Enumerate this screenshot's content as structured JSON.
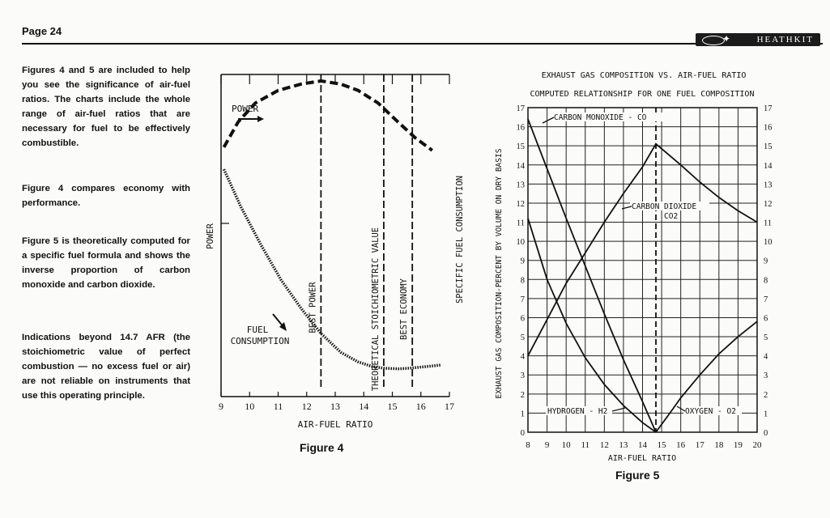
{
  "page": {
    "number": "Page 24",
    "brand": "HEATHKIT"
  },
  "text": {
    "p1": "Figures 4 and 5 are included to help you see the significance of air-fuel ratios. The charts include the whole range of air-fuel ratios that are necessary for fuel to be effectively combustible.",
    "p2": "Figure 4 compares economy with performance.",
    "p3": "Figure 5 is theoretically computed for a specific fuel formula and shows the inverse proportion of carbon monoxide and carbon dioxide.",
    "p4": "Indications beyond 14.7 AFR (the stoichiometric value of perfect combustion — no excess fuel or air) are not reliable on instruments that use this operating principle."
  },
  "chart_data": [
    {
      "type": "line",
      "figure_label": "Figure 4",
      "xlabel": "AIR-FUEL RATIO",
      "ylabel_left": "POWER",
      "ylabel_right": "SPECIFIC FUEL CONSUMPTION",
      "xlim": [
        9,
        17
      ],
      "x_ticks": [
        9,
        10,
        11,
        12,
        13,
        14,
        15,
        16,
        17
      ],
      "y_axis_values_printed": false,
      "series": [
        {
          "name": "POWER",
          "style": "dashed",
          "points": [
            [
              9.1,
              0.79
            ],
            [
              9.6,
              0.87
            ],
            [
              10.2,
              0.93
            ],
            [
              11.0,
              0.97
            ],
            [
              11.8,
              0.99
            ],
            [
              12.5,
              1.0
            ],
            [
              13.2,
              0.99
            ],
            [
              13.8,
              0.97
            ],
            [
              14.5,
              0.93
            ],
            [
              15.2,
              0.87
            ],
            [
              15.8,
              0.82
            ],
            [
              16.4,
              0.78
            ]
          ]
        },
        {
          "name": "FUEL CONSUMPTION",
          "style": "dotted",
          "points": [
            [
              9.1,
              0.72
            ],
            [
              9.7,
              0.6
            ],
            [
              10.4,
              0.48
            ],
            [
              11.1,
              0.37
            ],
            [
              11.8,
              0.28
            ],
            [
              12.5,
              0.2
            ],
            [
              13.2,
              0.14
            ],
            [
              13.8,
              0.11
            ],
            [
              14.3,
              0.095
            ],
            [
              14.7,
              0.09
            ],
            [
              15.2,
              0.088
            ],
            [
              15.6,
              0.09
            ],
            [
              16.2,
              0.095
            ],
            [
              16.7,
              0.1
            ]
          ]
        }
      ],
      "reference_lines": [
        {
          "x": 12.5,
          "label": "BEST POWER"
        },
        {
          "x": 14.7,
          "label": "THEORETICAL STOICHIOMETRIC VALUE"
        },
        {
          "x": 15.7,
          "label": "BEST ECONOMY"
        }
      ],
      "annotations": {
        "power": "POWER",
        "fuel_line1": "FUEL",
        "fuel_line2": "CONSUMPTION"
      }
    },
    {
      "type": "line",
      "figure_label": "Figure 5",
      "title": "EXHAUST GAS COMPOSITION VS. AIR-FUEL RATIO",
      "subtitle": "COMPUTED RELATIONSHIP FOR ONE FUEL COMPOSITION",
      "xlabel": "AIR-FUEL RATIO",
      "ylabel": "EXHAUST GAS COMPOSITION-PERCENT BY VOLUME ON DRY BASIS",
      "xlim": [
        8,
        20
      ],
      "ylim": [
        0,
        17
      ],
      "x_ticks": [
        8,
        9,
        10,
        11,
        12,
        13,
        14,
        15,
        16,
        17,
        18,
        19,
        20
      ],
      "y_ticks": [
        0,
        1,
        2,
        3,
        4,
        5,
        6,
        7,
        8,
        9,
        10,
        11,
        12,
        13,
        14,
        15,
        16,
        17
      ],
      "grid": true,
      "reference_line_x": 14.7,
      "series": [
        {
          "name": "CARBON MONOXIDE - CO",
          "points": [
            [
              8,
              16.4
            ],
            [
              9,
              13.8
            ],
            [
              10,
              11.2
            ],
            [
              11,
              8.7
            ],
            [
              12,
              6.2
            ],
            [
              13,
              3.8
            ],
            [
              14,
              1.6
            ],
            [
              14.7,
              0
            ]
          ]
        },
        {
          "name": "CARBON DIOXIDE - CO2",
          "points": [
            [
              8,
              4.0
            ],
            [
              9,
              5.9
            ],
            [
              10,
              7.8
            ],
            [
              11,
              9.4
            ],
            [
              12,
              11.0
            ],
            [
              13,
              12.5
            ],
            [
              14,
              13.9
            ],
            [
              14.7,
              15.1
            ],
            [
              16,
              14.0
            ],
            [
              17,
              13.1
            ],
            [
              18,
              12.3
            ],
            [
              19,
              11.6
            ],
            [
              20,
              11.0
            ]
          ]
        },
        {
          "name": "HYDROGEN - H2",
          "points": [
            [
              8,
              11.2
            ],
            [
              9,
              8.0
            ],
            [
              10,
              5.7
            ],
            [
              11,
              3.9
            ],
            [
              12,
              2.5
            ],
            [
              13,
              1.4
            ],
            [
              14,
              0.5
            ],
            [
              14.7,
              0
            ]
          ]
        },
        {
          "name": "OXYGEN - O2",
          "points": [
            [
              14.7,
              0
            ],
            [
              15.5,
              1.1
            ],
            [
              16,
              1.8
            ],
            [
              17,
              3.0
            ],
            [
              18,
              4.1
            ],
            [
              19,
              5.0
            ],
            [
              20,
              5.8
            ]
          ]
        }
      ],
      "labels": {
        "co": "CARBON MONOXIDE - CO",
        "co2": "CARBON DIOXIDE",
        "co2_formula": "CO2",
        "h2": "HYDROGEN - H2",
        "o2": "OXYGEN - O2"
      }
    }
  ]
}
